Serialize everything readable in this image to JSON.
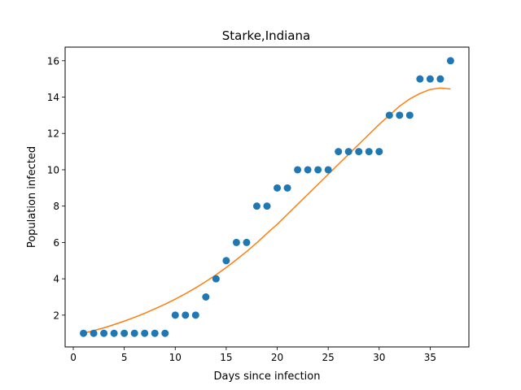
{
  "chart_data": {
    "type": "scatter",
    "title": "Starke,Indiana",
    "xlabel": "Days since infection",
    "ylabel": "Population infected",
    "xlim": [
      -0.8,
      38.8
    ],
    "ylim": [
      0.25,
      16.75
    ],
    "xticks": [
      0,
      5,
      10,
      15,
      20,
      25,
      30,
      35
    ],
    "yticks": [
      2,
      4,
      6,
      8,
      10,
      12,
      14,
      16
    ],
    "grid": false,
    "colors": {
      "points": "#1f77b4",
      "fit": "#ff7f0e"
    },
    "series": [
      {
        "kind": "scatter",
        "x": [
          1,
          2,
          3,
          4,
          5,
          6,
          7,
          8,
          9,
          10,
          11,
          12,
          13,
          14,
          15,
          16,
          17,
          18,
          19,
          20,
          21,
          22,
          23,
          24,
          25,
          26,
          27,
          28,
          29,
          30,
          31,
          32,
          33,
          34,
          35,
          36,
          37
        ],
        "y": [
          1,
          1,
          1,
          1,
          1,
          1,
          1,
          1,
          1,
          2,
          2,
          2,
          3,
          4,
          5,
          6,
          6,
          8,
          8,
          9,
          9,
          10,
          10,
          10,
          10,
          11,
          11,
          11,
          11,
          11,
          13,
          13,
          13,
          15,
          15,
          15,
          16
        ]
      },
      {
        "kind": "line",
        "x": [
          1,
          2,
          3,
          4,
          5,
          6,
          7,
          8,
          9,
          10,
          11,
          12,
          13,
          14,
          15,
          16,
          17,
          18,
          19,
          20,
          21,
          22,
          23,
          24,
          25,
          26,
          27,
          28,
          29,
          30,
          31,
          32,
          33,
          34,
          35,
          36,
          37
        ],
        "y": [
          1.0,
          1.15,
          1.3,
          1.48,
          1.67,
          1.88,
          2.1,
          2.35,
          2.6,
          2.88,
          3.18,
          3.5,
          3.85,
          4.22,
          4.62,
          5.05,
          5.5,
          5.98,
          6.5,
          7.0,
          7.55,
          8.1,
          8.65,
          9.2,
          9.75,
          10.3,
          10.85,
          11.4,
          11.95,
          12.5,
          13.0,
          13.5,
          13.9,
          14.2,
          14.42,
          14.5,
          14.45
        ]
      }
    ]
  }
}
